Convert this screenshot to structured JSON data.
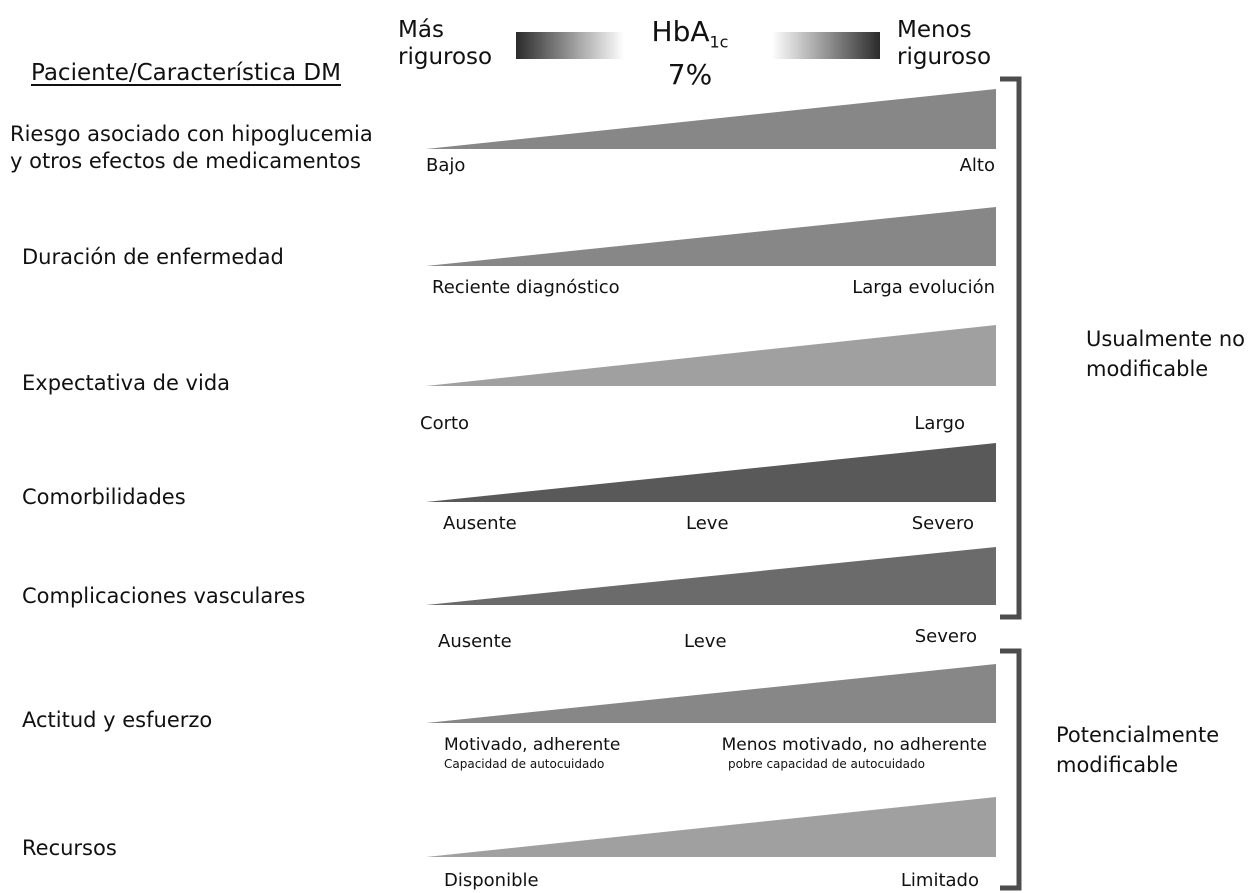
{
  "header": {
    "left_line1": "Más",
    "left_line2": "riguroso",
    "center_main": "HbA",
    "center_sub": "1c",
    "center_value": "7%",
    "right_line1": "Menos",
    "right_line2": "riguroso"
  },
  "column_title": "Paciente/Característica DM",
  "rows": [
    {
      "label": "Riesgo asociado con hipoglucemia\ny otros efectos de medicamentos",
      "color": "#878787",
      "left": "Bajo",
      "right": "Alto"
    },
    {
      "label": "Duración de enfermedad",
      "color": "#878787",
      "left": "Reciente diagnóstico",
      "right": "Larga evolución"
    },
    {
      "label": "Expectativa de vida",
      "color": "#a0a0a0",
      "left": "Corto",
      "right": "Largo"
    },
    {
      "label": "Comorbilidades",
      "color": "#595959",
      "left": "Ausente",
      "mid": "Leve",
      "right": "Severo"
    },
    {
      "label": "Complicaciones vasculares",
      "color": "#6b6b6b",
      "left": "Ausente",
      "mid": "Leve",
      "right": "Severo"
    },
    {
      "label": "Actitud y esfuerzo",
      "color": "#878787",
      "left": "Motivado,  adherente",
      "left_sub": "Capacidad de autocuidado",
      "right": "Menos motivado, no adherente",
      "right_sub": "pobre capacidad de autocuidado"
    },
    {
      "label": "Recursos",
      "color": "#a0a0a0",
      "left": "Disponible",
      "right": "Limitado"
    }
  ],
  "groups": {
    "upper_line1": "Usualmente no",
    "upper_line2": "modificable",
    "lower_line1": "Potencialmente",
    "lower_line2": "modificable"
  },
  "colors": {
    "bracket": "#4d4d4d",
    "gradient_dark": "#2b2b2b",
    "gradient_light": "#ffffff"
  }
}
